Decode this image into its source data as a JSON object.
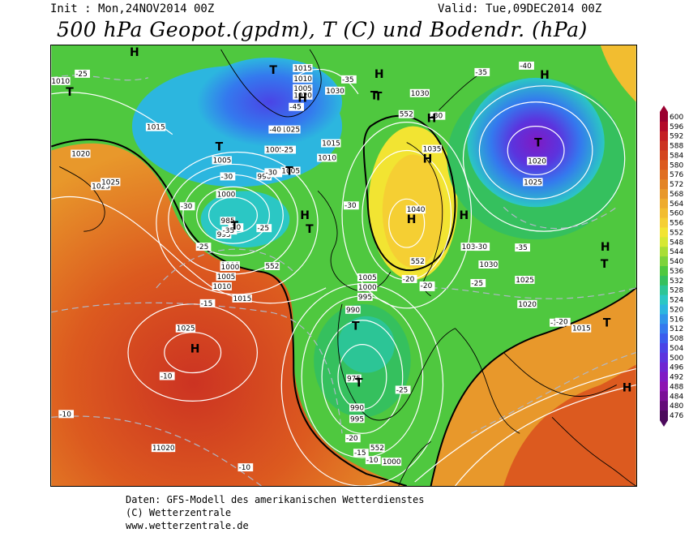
{
  "header": {
    "init": "Init : Mon,24NOV2014 00Z",
    "valid": "Valid: Tue,09DEC2014 00Z",
    "title": "500 hPa Geopot.(gpdm), T (C) und Bodendr. (hPa)"
  },
  "footer": {
    "line1": "Daten: GFS-Modell des amerikanischen Wetterdienstes",
    "line2": "(C) Wetterzentrale",
    "line3": "www.wetterzentrale.de"
  },
  "legend": {
    "values": [
      "600",
      "596",
      "592",
      "588",
      "584",
      "580",
      "576",
      "572",
      "568",
      "564",
      "560",
      "556",
      "552",
      "548",
      "544",
      "540",
      "536",
      "532",
      "528",
      "524",
      "520",
      "516",
      "512",
      "508",
      "504",
      "500",
      "496",
      "492",
      "488",
      "484",
      "480",
      "476"
    ],
    "colors": [
      "#9b0030",
      "#b30a2a",
      "#c41f24",
      "#cc3322",
      "#d4451f",
      "#dc5a1f",
      "#e06f22",
      "#e38426",
      "#e8982b",
      "#eeab2e",
      "#f2bd30",
      "#f5cf33",
      "#f2e432",
      "#d6e833",
      "#a9de35",
      "#7dd33a",
      "#4fc83f",
      "#35c05e",
      "#2cc596",
      "#2bc7c4",
      "#2cb6df",
      "#3096ea",
      "#3479ee",
      "#3a5ced",
      "#4a44e6",
      "#5b34de",
      "#6e25d2",
      "#7f1ac4",
      "#8c14b2",
      "#7a0f96",
      "#630b78",
      "#4c0a5c"
    ]
  },
  "map_labels": {
    "pressure": [
      {
        "t": "1010"
      },
      {
        "t": "1015"
      },
      {
        "t": "1020"
      },
      {
        "t": "1025"
      },
      {
        "t": "1005"
      },
      {
        "t": "1000"
      },
      {
        "t": "995"
      },
      {
        "t": "990"
      },
      {
        "t": "1015"
      },
      {
        "t": "1010"
      },
      {
        "t": "1005"
      },
      {
        "t": "1020"
      },
      {
        "t": "1030"
      },
      {
        "t": "1025"
      },
      {
        "t": "1015"
      },
      {
        "t": "1010"
      },
      {
        "t": "1005"
      },
      {
        "t": "1000"
      },
      {
        "t": "985"
      },
      {
        "t": "1000"
      },
      {
        "t": "1005"
      },
      {
        "t": "1010"
      },
      {
        "t": "1015"
      },
      {
        "t": "1025"
      },
      {
        "t": "1020"
      },
      {
        "t": "1030"
      },
      {
        "t": "1035"
      },
      {
        "t": "1040"
      },
      {
        "t": "1035"
      },
      {
        "t": "1030"
      },
      {
        "t": "1025"
      },
      {
        "t": "1020"
      },
      {
        "t": "1015"
      },
      {
        "t": "1020"
      },
      {
        "t": "1025"
      },
      {
        "t": "1005"
      },
      {
        "t": "1000"
      },
      {
        "t": "995"
      },
      {
        "t": "990"
      },
      {
        "t": "975"
      },
      {
        "t": "990"
      },
      {
        "t": "995"
      },
      {
        "t": "1000"
      },
      {
        "t": "1005"
      },
      {
        "t": "1020"
      },
      {
        "t": "1025"
      }
    ],
    "temperature": [
      {
        "t": "-25"
      },
      {
        "t": "-40"
      },
      {
        "t": "-45"
      },
      {
        "t": "-35"
      },
      {
        "t": "-30"
      },
      {
        "t": "-25"
      },
      {
        "t": "-30"
      },
      {
        "t": "-25"
      },
      {
        "t": "-30"
      },
      {
        "t": "-30"
      },
      {
        "t": "-35"
      },
      {
        "t": "-30"
      },
      {
        "t": "-25"
      },
      {
        "t": "-40"
      },
      {
        "t": "-35"
      },
      {
        "t": "-30"
      },
      {
        "t": "-35"
      },
      {
        "t": "-30"
      },
      {
        "t": "-30"
      },
      {
        "t": "-25"
      },
      {
        "t": "-20"
      },
      {
        "t": "-25"
      },
      {
        "t": "-20"
      },
      {
        "t": "-15"
      },
      {
        "t": "-20"
      },
      {
        "t": "-15"
      },
      {
        "t": "-10"
      },
      {
        "t": "-10"
      },
      {
        "t": "-10"
      },
      {
        "t": "-10"
      },
      {
        "t": "-15"
      },
      {
        "t": "-20"
      },
      {
        "t": "-25"
      }
    ],
    "geopot": [
      {
        "t": "552"
      },
      {
        "t": "552"
      },
      {
        "t": "552"
      },
      {
        "t": "552"
      }
    ],
    "symbols": [
      {
        "t": "H"
      },
      {
        "t": "T"
      },
      {
        "t": "T"
      },
      {
        "t": "H"
      },
      {
        "t": "T"
      },
      {
        "t": "H"
      },
      {
        "t": "T"
      },
      {
        "t": "T"
      },
      {
        "t": "T"
      },
      {
        "t": "H"
      },
      {
        "t": "H"
      },
      {
        "t": "T"
      },
      {
        "t": "H"
      },
      {
        "t": "H"
      },
      {
        "t": "T"
      },
      {
        "t": "H"
      },
      {
        "t": "H"
      },
      {
        "t": "T"
      },
      {
        "t": "H"
      },
      {
        "t": "T"
      },
      {
        "t": "H"
      },
      {
        "t": "T"
      },
      {
        "t": "T"
      },
      {
        "t": "H"
      },
      {
        "t": "T"
      },
      {
        "t": "H"
      }
    ]
  }
}
